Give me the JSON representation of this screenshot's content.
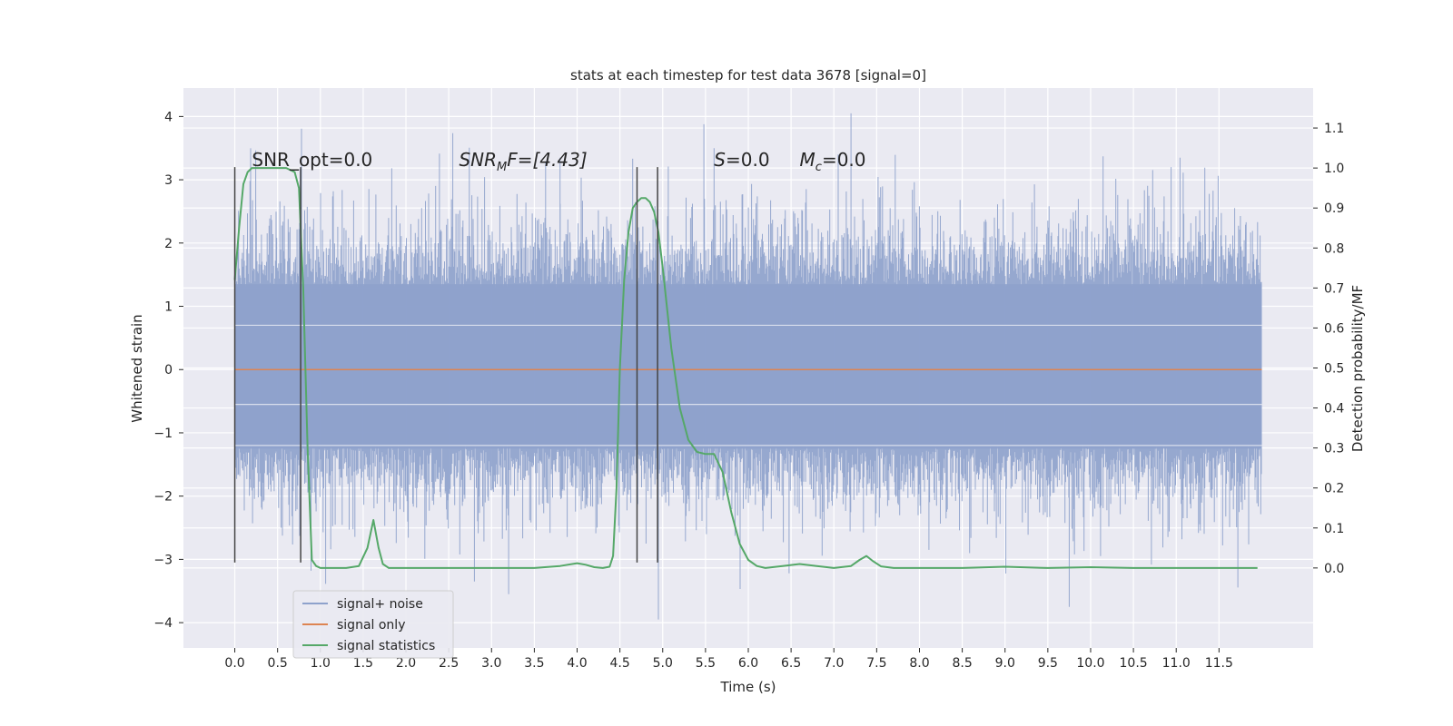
{
  "chart_data": {
    "type": "line",
    "title": "stats at each timestep for test data 3678 [signal=0]",
    "xlabel": "Time (s)",
    "ylabel_left": "Whitened strain",
    "ylabel_right": "Detection probability/MF",
    "xlim": [
      -0.6,
      12.6
    ],
    "ylim_left": [
      -4.4,
      4.45
    ],
    "ylim_right": [
      -0.2,
      1.2
    ],
    "x_ticks": [
      "0.0",
      "0.5",
      "1.0",
      "1.5",
      "2.0",
      "2.5",
      "3.0",
      "3.5",
      "4.0",
      "4.5",
      "5.0",
      "5.5",
      "6.0",
      "6.5",
      "7.0",
      "7.5",
      "8.0",
      "8.5",
      "9.0",
      "9.5",
      "10.0",
      "10.5",
      "11.0",
      "11.5"
    ],
    "y_ticks_left": [
      "4",
      "3",
      "2",
      "1",
      "0",
      "−1",
      "−2",
      "−3",
      "−4"
    ],
    "y_ticks_right": [
      "1.1",
      "1.0",
      "0.9",
      "0.8",
      "0.7",
      "0.6",
      "0.5",
      "0.4",
      "0.3",
      "0.2",
      "0.1",
      "0.0"
    ],
    "grid": true,
    "background": "#eaeaf2",
    "annotations": [
      {
        "text": "SNR_opt=0.0",
        "x": 0.2
      },
      {
        "text": "SNR",
        "sub": "M",
        "tail": "F=[4.43]",
        "x": 2.62
      },
      {
        "text": "S",
        "tail": "=0.0",
        "x": 5.6
      },
      {
        "text": "M",
        "sub": "c",
        "tail": "=0.0",
        "x": 6.6
      }
    ],
    "vertical_lines_x": [
      0.0,
      0.77,
      4.7,
      4.94
    ],
    "vertical_lines_range_left": [
      -3.05,
      3.2
    ],
    "series": [
      {
        "name": "signal+ noise",
        "color": "#8ea2cc",
        "axis": "left",
        "noise_envelope": {
          "x_range": [
            0.0,
            12.0
          ],
          "core_low": -1.25,
          "core_high": 1.35,
          "max": 4.05,
          "min": -3.95
        }
      },
      {
        "name": "signal only",
        "color": "#dd8452",
        "axis": "left",
        "x": [
          0.0,
          12.0
        ],
        "y": [
          0.0,
          0.0
        ]
      },
      {
        "name": "signal statistics",
        "color": "#55a868",
        "axis": "right",
        "x": [
          0.0,
          0.05,
          0.1,
          0.15,
          0.2,
          0.3,
          0.5,
          0.6,
          0.7,
          0.75,
          0.8,
          0.85,
          0.9,
          0.95,
          1.0,
          1.1,
          1.3,
          1.45,
          1.55,
          1.62,
          1.68,
          1.73,
          1.8,
          1.9,
          2.0,
          2.5,
          3.0,
          3.5,
          3.8,
          4.0,
          4.1,
          4.2,
          4.3,
          4.38,
          4.42,
          4.46,
          4.5,
          4.55,
          4.6,
          4.65,
          4.7,
          4.75,
          4.8,
          4.85,
          4.9,
          4.95,
          5.0,
          5.1,
          5.2,
          5.3,
          5.4,
          5.5,
          5.6,
          5.7,
          5.8,
          5.9,
          6.0,
          6.1,
          6.2,
          6.4,
          6.6,
          6.8,
          7.0,
          7.2,
          7.3,
          7.38,
          7.45,
          7.55,
          7.7,
          8.0,
          8.5,
          9.0,
          9.5,
          10.0,
          10.5,
          11.0,
          11.5,
          11.95
        ],
        "y": [
          0.72,
          0.85,
          0.96,
          0.99,
          1.0,
          1.0,
          1.0,
          1.0,
          0.99,
          0.95,
          0.7,
          0.3,
          0.02,
          0.005,
          0.0,
          0.0,
          0.0,
          0.005,
          0.05,
          0.12,
          0.05,
          0.01,
          0.0,
          0.0,
          0.0,
          0.0,
          0.0,
          0.0,
          0.005,
          0.012,
          0.008,
          0.002,
          0.0,
          0.003,
          0.03,
          0.2,
          0.5,
          0.72,
          0.84,
          0.9,
          0.915,
          0.925,
          0.925,
          0.915,
          0.89,
          0.84,
          0.75,
          0.55,
          0.4,
          0.32,
          0.29,
          0.285,
          0.285,
          0.24,
          0.14,
          0.06,
          0.02,
          0.005,
          0.0,
          0.005,
          0.01,
          0.005,
          0.0,
          0.005,
          0.02,
          0.03,
          0.018,
          0.004,
          0.0,
          0.0,
          0.0,
          0.003,
          0.0,
          0.002,
          0.0,
          0.0,
          0.0,
          0.0
        ]
      }
    ],
    "legend": {
      "location": "lower-left"
    }
  }
}
